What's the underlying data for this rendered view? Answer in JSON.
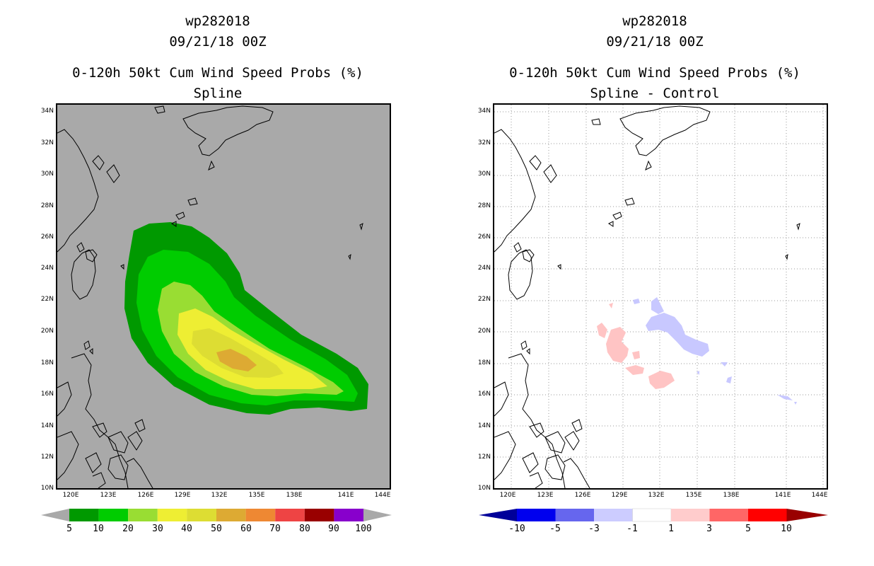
{
  "left_panel": {
    "title_lines": [
      "wp282018",
      "09/21/18 00Z"
    ],
    "subtitle_lines": [
      "0-120h 50kt Cum Wind Speed Probs (%)",
      "Spline"
    ],
    "colorbar": {
      "labels": [
        "5",
        "10",
        "20",
        "30",
        "40",
        "50",
        "60",
        "70",
        "80",
        "90",
        "100"
      ],
      "colors": [
        "#009900",
        "#00cc00",
        "#99dd33",
        "#eeee33",
        "#dddd33",
        "#ddaa33",
        "#ee8833",
        "#ee4444",
        "#990000",
        "#8800cc"
      ]
    }
  },
  "right_panel": {
    "title_lines": [
      "wp282018",
      "09/21/18 00Z"
    ],
    "subtitle_lines": [
      "0-120h 50kt Cum Wind Speed Probs (%)",
      "Spline - Control"
    ],
    "colorbar": {
      "labels": [
        "-10",
        "-5",
        "-3",
        "-1",
        "1",
        "3",
        "5",
        "10"
      ],
      "colors": [
        "#000099",
        "#0000ee",
        "#6666ee",
        "#ccccff",
        "#ffffff",
        "#ffcccc",
        "#ff6666",
        "#ff0000",
        "#990000"
      ]
    }
  },
  "axes": {
    "lat_labels": [
      "34N",
      "32N",
      "30N",
      "28N",
      "26N",
      "24N",
      "22N",
      "20N",
      "18N",
      "16N",
      "14N",
      "12N",
      "10N"
    ],
    "lon_labels": [
      "120E",
      "123E",
      "126E",
      "129E",
      "132E",
      "135E",
      "138E",
      "141E",
      "144E"
    ]
  },
  "map_colors": {
    "left_background": "#a9a9a9",
    "right_background": "#ffffff",
    "coast": "#000000",
    "grid": "#999999"
  }
}
